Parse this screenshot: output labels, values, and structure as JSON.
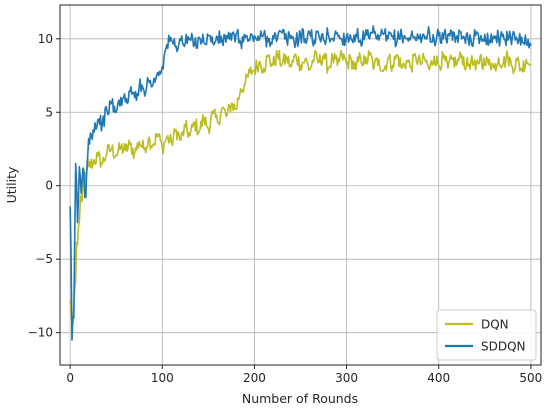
{
  "chart_data": {
    "type": "line",
    "title": "",
    "xlabel": "Number of Rounds",
    "ylabel": "Utility",
    "xlim": [
      -11,
      511
    ],
    "ylim": [
      -12.2,
      12.3
    ],
    "x_ticks": [
      0,
      100,
      200,
      300,
      400,
      500
    ],
    "y_ticks": [
      -10,
      -5,
      0,
      5,
      10
    ],
    "grid": true,
    "legend_position": "bottom-right",
    "series": [
      {
        "name": "DQN",
        "color": "#bcbd22",
        "points": [
          [
            0,
            -7.8
          ],
          [
            2,
            -9.5
          ],
          [
            4,
            -8.2
          ],
          [
            6,
            -6.5
          ],
          [
            8,
            -4.0
          ],
          [
            10,
            -2.5
          ],
          [
            12,
            -0.6
          ],
          [
            14,
            0.3
          ],
          [
            16,
            -0.2
          ],
          [
            18,
            0.8
          ],
          [
            20,
            1.3
          ],
          [
            25,
            1.6
          ],
          [
            30,
            2.0
          ],
          [
            35,
            1.5
          ],
          [
            40,
            2.3
          ],
          [
            45,
            2.5
          ],
          [
            50,
            2.1
          ],
          [
            55,
            2.6
          ],
          [
            60,
            2.4
          ],
          [
            65,
            2.8
          ],
          [
            70,
            2.2
          ],
          [
            75,
            3.0
          ],
          [
            80,
            2.5
          ],
          [
            85,
            3.2
          ],
          [
            90,
            2.8
          ],
          [
            95,
            3.5
          ],
          [
            100,
            2.6
          ],
          [
            105,
            3.3
          ],
          [
            110,
            2.9
          ],
          [
            115,
            3.8
          ],
          [
            120,
            3.1
          ],
          [
            125,
            4.0
          ],
          [
            130,
            3.4
          ],
          [
            135,
            4.3
          ],
          [
            140,
            3.7
          ],
          [
            145,
            4.6
          ],
          [
            150,
            3.9
          ],
          [
            155,
            4.9
          ],
          [
            160,
            4.3
          ],
          [
            165,
            5.3
          ],
          [
            170,
            4.7
          ],
          [
            175,
            5.6
          ],
          [
            180,
            5.2
          ],
          [
            185,
            6.6
          ],
          [
            190,
            6.9
          ],
          [
            195,
            7.7
          ],
          [
            200,
            7.9
          ],
          [
            205,
            8.4
          ],
          [
            210,
            8.0
          ],
          [
            215,
            8.8
          ],
          [
            220,
            8.2
          ],
          [
            225,
            8.9
          ],
          [
            230,
            8.3
          ],
          [
            235,
            8.7
          ],
          [
            240,
            8.1
          ],
          [
            245,
            8.9
          ],
          [
            250,
            8.2
          ],
          [
            255,
            8.6
          ],
          [
            260,
            7.9
          ],
          [
            265,
            8.8
          ],
          [
            270,
            8.4
          ],
          [
            275,
            8.9
          ],
          [
            280,
            8.0
          ],
          [
            285,
            8.7
          ],
          [
            290,
            8.2
          ],
          [
            295,
            8.9
          ],
          [
            300,
            8.3
          ],
          [
            305,
            8.6
          ],
          [
            310,
            7.9
          ],
          [
            315,
            8.8
          ],
          [
            320,
            8.3
          ],
          [
            325,
            8.9
          ],
          [
            330,
            8.1
          ],
          [
            335,
            8.6
          ],
          [
            340,
            7.8
          ],
          [
            345,
            8.7
          ],
          [
            350,
            8.2
          ],
          [
            355,
            8.9
          ],
          [
            360,
            8.0
          ],
          [
            365,
            8.5
          ],
          [
            370,
            8.1
          ],
          [
            375,
            8.8
          ],
          [
            380,
            8.3
          ],
          [
            385,
            8.6
          ],
          [
            390,
            7.9
          ],
          [
            395,
            8.8
          ],
          [
            400,
            8.2
          ],
          [
            405,
            8.7
          ],
          [
            410,
            8.0
          ],
          [
            415,
            8.6
          ],
          [
            420,
            8.3
          ],
          [
            425,
            8.9
          ],
          [
            430,
            8.1
          ],
          [
            435,
            8.5
          ],
          [
            440,
            7.9
          ],
          [
            445,
            8.8
          ],
          [
            450,
            8.2
          ],
          [
            455,
            8.6
          ],
          [
            460,
            8.0
          ],
          [
            465,
            8.7
          ],
          [
            470,
            8.3
          ],
          [
            475,
            8.8
          ],
          [
            480,
            8.1
          ],
          [
            485,
            8.5
          ],
          [
            490,
            7.9
          ],
          [
            495,
            8.6
          ],
          [
            500,
            8.2
          ]
        ]
      },
      {
        "name": "SDDQN",
        "color": "#1f77b4",
        "points": [
          [
            0,
            -1.4
          ],
          [
            2,
            -10.5
          ],
          [
            4,
            -9.0
          ],
          [
            6,
            1.5
          ],
          [
            8,
            -2.5
          ],
          [
            10,
            1.3
          ],
          [
            12,
            -0.5
          ],
          [
            14,
            1.2
          ],
          [
            16,
            -0.8
          ],
          [
            18,
            1.0
          ],
          [
            20,
            3.2
          ],
          [
            25,
            3.8
          ],
          [
            30,
            4.5
          ],
          [
            35,
            4.2
          ],
          [
            40,
            5.1
          ],
          [
            45,
            5.6
          ],
          [
            50,
            5.0
          ],
          [
            55,
            6.0
          ],
          [
            60,
            5.7
          ],
          [
            65,
            6.4
          ],
          [
            70,
            6.0
          ],
          [
            75,
            6.8
          ],
          [
            80,
            6.5
          ],
          [
            85,
            7.2
          ],
          [
            90,
            6.9
          ],
          [
            95,
            7.7
          ],
          [
            100,
            8.1
          ],
          [
            105,
            9.6
          ],
          [
            110,
            9.9
          ],
          [
            115,
            9.5
          ],
          [
            120,
            9.9
          ],
          [
            125,
            9.7
          ],
          [
            130,
            10.0
          ],
          [
            135,
            9.6
          ],
          [
            140,
            10.1
          ],
          [
            145,
            9.8
          ],
          [
            150,
            10.2
          ],
          [
            155,
            9.7
          ],
          [
            160,
            10.1
          ],
          [
            165,
            9.8
          ],
          [
            170,
            10.2
          ],
          [
            175,
            9.9
          ],
          [
            180,
            10.3
          ],
          [
            185,
            9.8
          ],
          [
            190,
            10.1
          ],
          [
            195,
            9.9
          ],
          [
            200,
            10.2
          ],
          [
            205,
            9.9
          ],
          [
            210,
            10.3
          ],
          [
            215,
            9.8
          ],
          [
            220,
            10.2
          ],
          [
            225,
            10.0
          ],
          [
            230,
            10.4
          ],
          [
            235,
            9.9
          ],
          [
            240,
            10.2
          ],
          [
            245,
            9.8
          ],
          [
            250,
            10.3
          ],
          [
            255,
            10.0
          ],
          [
            260,
            10.4
          ],
          [
            265,
            9.9
          ],
          [
            270,
            10.2
          ],
          [
            275,
            9.9
          ],
          [
            280,
            10.3
          ],
          [
            285,
            10.0
          ],
          [
            290,
            10.4
          ],
          [
            295,
            9.9
          ],
          [
            300,
            10.2
          ],
          [
            305,
            10.0
          ],
          [
            310,
            10.3
          ],
          [
            315,
            9.9
          ],
          [
            320,
            10.2
          ],
          [
            325,
            10.0
          ],
          [
            330,
            10.4
          ],
          [
            335,
            9.9
          ],
          [
            340,
            10.3
          ],
          [
            345,
            10.0
          ],
          [
            350,
            10.2
          ],
          [
            355,
            9.9
          ],
          [
            360,
            10.3
          ],
          [
            365,
            10.0
          ],
          [
            370,
            10.2
          ],
          [
            375,
            9.9
          ],
          [
            380,
            10.3
          ],
          [
            385,
            10.0
          ],
          [
            390,
            10.4
          ],
          [
            395,
            9.9
          ],
          [
            400,
            10.2
          ],
          [
            405,
            10.0
          ],
          [
            410,
            10.3
          ],
          [
            415,
            9.9
          ],
          [
            420,
            10.2
          ],
          [
            425,
            10.0
          ],
          [
            430,
            10.3
          ],
          [
            435,
            9.9
          ],
          [
            440,
            10.2
          ],
          [
            445,
            10.0
          ],
          [
            450,
            10.3
          ],
          [
            455,
            9.9
          ],
          [
            460,
            10.2
          ],
          [
            465,
            10.0
          ],
          [
            470,
            10.3
          ],
          [
            475,
            9.9
          ],
          [
            480,
            10.2
          ],
          [
            485,
            10.0
          ],
          [
            490,
            10.1
          ],
          [
            495,
            9.7
          ],
          [
            500,
            9.5
          ]
        ]
      }
    ]
  }
}
